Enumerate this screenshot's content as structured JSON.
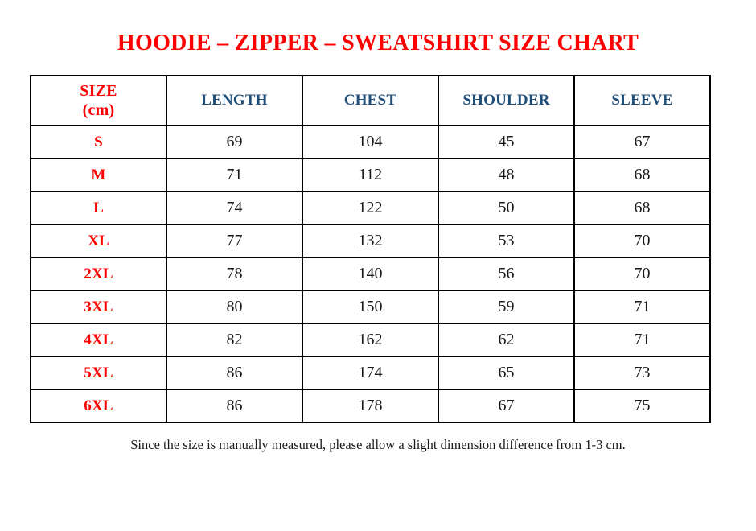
{
  "page": {
    "stray_dot": ".",
    "title": "HOODIE – ZIPPER – SWEATSHIRT SIZE CHART",
    "footnote": "Since the size is manually measured, please allow a slight dimension difference from 1-3 cm."
  },
  "colors": {
    "title_red": "#fe0000",
    "size_red": "#fe0000",
    "header_blue": "#1f4e79",
    "value_black": "#1a1a1a",
    "border_black": "#000000"
  },
  "table": {
    "size_header": {
      "line1": "SIZE",
      "line2": "(cm)"
    },
    "columns": [
      "LENGTH",
      "CHEST",
      "SHOULDER",
      "SLEEVE"
    ],
    "rows": [
      {
        "size": "S",
        "values": [
          "69",
          "104",
          "45",
          "67"
        ]
      },
      {
        "size": "M",
        "values": [
          "71",
          "112",
          "48",
          "68"
        ]
      },
      {
        "size": "L",
        "values": [
          "74",
          "122",
          "50",
          "68"
        ]
      },
      {
        "size": "XL",
        "values": [
          "77",
          "132",
          "53",
          "70"
        ]
      },
      {
        "size": "2XL",
        "values": [
          "78",
          "140",
          "56",
          "70"
        ]
      },
      {
        "size": "3XL",
        "values": [
          "80",
          "150",
          "59",
          "71"
        ]
      },
      {
        "size": "4XL",
        "values": [
          "82",
          "162",
          "62",
          "71"
        ]
      },
      {
        "size": "5XL",
        "values": [
          "86",
          "174",
          "65",
          "73"
        ]
      },
      {
        "size": "6XL",
        "values": [
          "86",
          "178",
          "67",
          "75"
        ]
      }
    ]
  },
  "chart_data": {
    "type": "table",
    "title": "HOODIE – ZIPPER – SWEATSHIRT SIZE CHART",
    "columns": [
      "SIZE (cm)",
      "LENGTH",
      "CHEST",
      "SHOULDER",
      "SLEEVE"
    ],
    "rows": [
      [
        "S",
        69,
        104,
        45,
        67
      ],
      [
        "M",
        71,
        112,
        48,
        68
      ],
      [
        "L",
        74,
        122,
        50,
        68
      ],
      [
        "XL",
        77,
        132,
        53,
        70
      ],
      [
        "2XL",
        78,
        140,
        56,
        70
      ],
      [
        "3XL",
        80,
        150,
        59,
        71
      ],
      [
        "4XL",
        82,
        162,
        62,
        71
      ],
      [
        "5XL",
        86,
        174,
        65,
        73
      ],
      [
        "6XL",
        86,
        178,
        67,
        75
      ]
    ]
  }
}
